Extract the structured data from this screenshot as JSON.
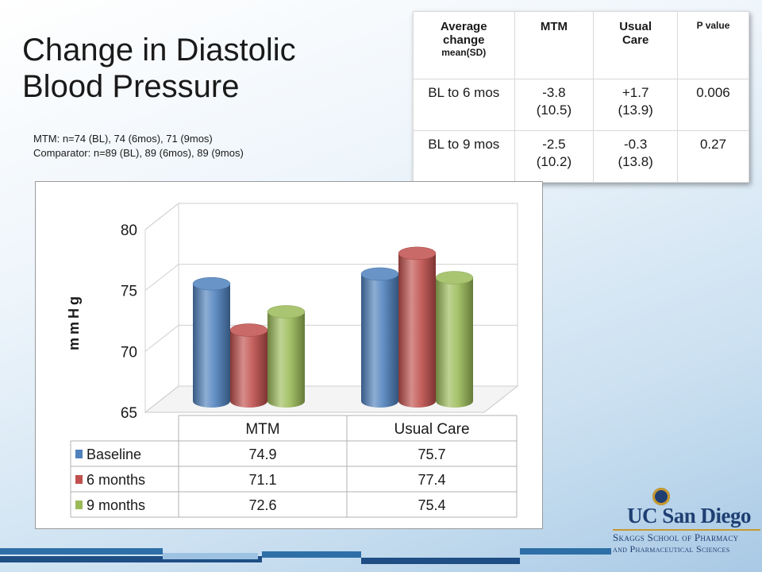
{
  "title": {
    "line1": "Change in Diastolic",
    "line2": "Blood Pressure"
  },
  "notes": {
    "mtm": "MTM: n=74 (BL), 74 (6mos), 71 (9mos)",
    "comparator": "Comparator: n=89 (BL), 89 (6mos), 89 (9mos)"
  },
  "results_table": {
    "headers": {
      "col1_line1": "Average",
      "col1_line2": "change",
      "col1_sub": "mean(SD)",
      "col2": "MTM",
      "col3_line1": "Usual",
      "col3_line2": "Care",
      "col4": "P value"
    },
    "rows": [
      {
        "label": "BL to 6 mos",
        "mtm_mean": "-3.8",
        "mtm_sd": "(10.5)",
        "uc_mean": "+1.7",
        "uc_sd": "(13.9)",
        "p": "0.006"
      },
      {
        "label": "BL to 9 mos",
        "mtm_mean": "-2.5",
        "mtm_sd": "(10.2)",
        "uc_mean": "-0.3",
        "uc_sd": "(13.8)",
        "p": "0.27"
      }
    ]
  },
  "chart_data": {
    "type": "bar",
    "ylabel": "mmHg",
    "ylim": [
      65,
      80
    ],
    "yticks": [
      "65",
      "70",
      "75",
      "80"
    ],
    "categories": [
      "MTM",
      "Usual Care"
    ],
    "series": [
      {
        "name": "Baseline",
        "values": [
          74.9,
          75.7
        ],
        "color": "#4f81bd"
      },
      {
        "name": "6 months",
        "values": [
          71.1,
          77.4
        ],
        "color": "#c0504d"
      },
      {
        "name": "9 months",
        "values": [
          72.6,
          75.4
        ],
        "color": "#9bbb59"
      }
    ],
    "data_table_values": [
      [
        "74.9",
        "75.7"
      ],
      [
        "71.1",
        "77.4"
      ],
      [
        "72.6",
        "75.4"
      ]
    ]
  },
  "logo": {
    "main": "UC San Diego",
    "line1": "Skaggs School of Pharmacy",
    "line2": "and Pharmaceutical Sciences"
  }
}
